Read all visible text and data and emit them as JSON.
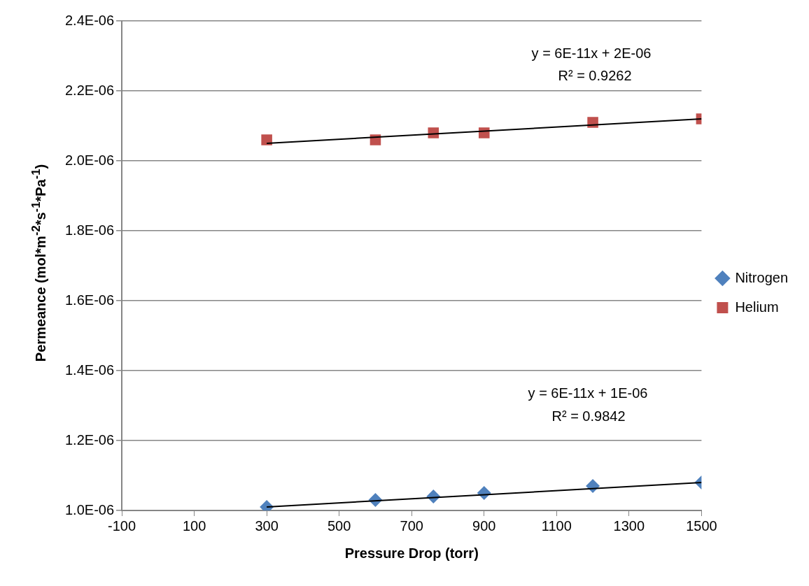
{
  "chart_data": {
    "type": "scatter",
    "xlabel": "Pressure Drop (torr)",
    "ylabel": "Permeance (mol*m$^{-2}$*s$^{-1}$*Pa$^{-1}$)",
    "x": [
      300,
      600,
      760,
      900,
      1200,
      1500
    ],
    "series": [
      {
        "name": "Nitrogen",
        "color": "#4f81bd",
        "marker": "diamond",
        "values": [
          1.01e-06,
          1.03e-06,
          1.04e-06,
          1.05e-06,
          1.07e-06,
          1.08e-06
        ]
      },
      {
        "name": "Helium",
        "color": "#c0504d",
        "marker": "square",
        "values": [
          2.06e-06,
          2.06e-06,
          2.08e-06,
          2.08e-06,
          2.11e-06,
          2.12e-06
        ]
      },
      {
        "type": "line",
        "color": "#000000",
        "marker": "none",
        "values": [
          1.01e-06,
          null,
          null,
          null,
          null,
          1.08e-06
        ]
      },
      {
        "type": "line",
        "color": "#000000",
        "marker": "none",
        "values": [
          2.05e-06,
          null,
          null,
          null,
          null,
          2.12e-06
        ]
      }
    ],
    "xlim": [
      -100,
      1500
    ],
    "xticks": [
      -100,
      100,
      300,
      500,
      700,
      900,
      1100,
      1300,
      1500
    ],
    "ylim": [
      1e-06,
      2.4e-06
    ],
    "yticks": [
      {
        "value": 1e-06,
        "label": "1.0E-06"
      },
      {
        "value": 1.2e-06,
        "label": "1.2E-06"
      },
      {
        "value": 1.4e-06,
        "label": "1.4E-06"
      },
      {
        "value": 1.6e-06,
        "label": "1.6E-06"
      },
      {
        "value": 1.8e-06,
        "label": "1.8E-06"
      },
      {
        "value": 2e-06,
        "label": "2.0E-06"
      },
      {
        "value": 2.2e-06,
        "label": "2.2E-06"
      },
      {
        "value": 2.4e-06,
        "label": "2.4E-06"
      }
    ],
    "annotations": [
      "y = 6E-11x + 2E-06",
      "R² = 0.9262",
      "y = 6E-11x + 1E-06",
      "R² = 0.9842"
    ],
    "grid": "y",
    "legend": "right"
  }
}
